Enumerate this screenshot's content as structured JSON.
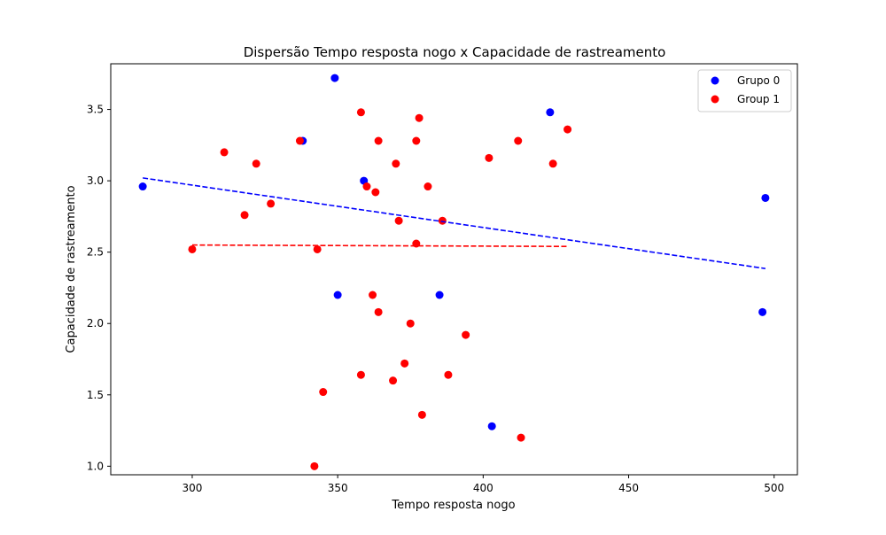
{
  "colors": {
    "group0": "#0000ff",
    "group1": "#ff0000",
    "axis": "#000000",
    "legend_border": "#cccccc"
  },
  "chart_data": {
    "type": "scatter",
    "title": "Dispersão Tempo resposta nogo x Capacidade de rastreamento",
    "xlabel": "Tempo resposta nogo",
    "ylabel": "Capacidade de rastreamento",
    "xlim": [
      272,
      508
    ],
    "ylim": [
      0.94,
      3.82
    ],
    "xticks": [
      300,
      350,
      400,
      450,
      500
    ],
    "yticks": [
      1.0,
      1.5,
      2.0,
      2.5,
      3.0,
      3.5
    ],
    "xtick_labels": [
      "300",
      "350",
      "400",
      "450",
      "500"
    ],
    "ytick_labels": [
      "1.0",
      "1.5",
      "2.0",
      "2.5",
      "3.0",
      "3.5"
    ],
    "grid": false,
    "legend_position": "top-right",
    "series": [
      {
        "name": "Grupo 0",
        "color": "#0000ff",
        "points": [
          [
            283,
            2.96
          ],
          [
            338,
            3.28
          ],
          [
            349,
            3.72
          ],
          [
            350,
            2.2
          ],
          [
            359,
            3.0
          ],
          [
            385,
            2.2
          ],
          [
            403,
            1.28
          ],
          [
            423,
            3.48
          ],
          [
            496,
            2.08
          ],
          [
            497,
            2.88
          ]
        ],
        "trend": {
          "x": [
            283,
            497
          ],
          "y": [
            3.02,
            2.385
          ]
        }
      },
      {
        "name": "Group 1",
        "color": "#ff0000",
        "points": [
          [
            300,
            2.52
          ],
          [
            311,
            3.2
          ],
          [
            318,
            2.76
          ],
          [
            322,
            3.12
          ],
          [
            327,
            2.84
          ],
          [
            337,
            3.28
          ],
          [
            342,
            1.0
          ],
          [
            343,
            2.52
          ],
          [
            345,
            1.52
          ],
          [
            358,
            3.48
          ],
          [
            358,
            1.64
          ],
          [
            360,
            2.96
          ],
          [
            362,
            2.2
          ],
          [
            363,
            2.92
          ],
          [
            364,
            3.28
          ],
          [
            364,
            2.08
          ],
          [
            369,
            1.6
          ],
          [
            370,
            3.12
          ],
          [
            371,
            2.72
          ],
          [
            373,
            1.72
          ],
          [
            375,
            2.0
          ],
          [
            377,
            3.28
          ],
          [
            377,
            2.56
          ],
          [
            378,
            3.44
          ],
          [
            379,
            1.36
          ],
          [
            381,
            2.96
          ],
          [
            386,
            2.72
          ],
          [
            388,
            1.64
          ],
          [
            394,
            1.92
          ],
          [
            402,
            3.16
          ],
          [
            412,
            3.28
          ],
          [
            413,
            1.2
          ],
          [
            424,
            3.12
          ],
          [
            429,
            3.36
          ]
        ],
        "trend": {
          "x": [
            300,
            429
          ],
          "y": [
            2.55,
            2.54
          ]
        }
      }
    ]
  }
}
